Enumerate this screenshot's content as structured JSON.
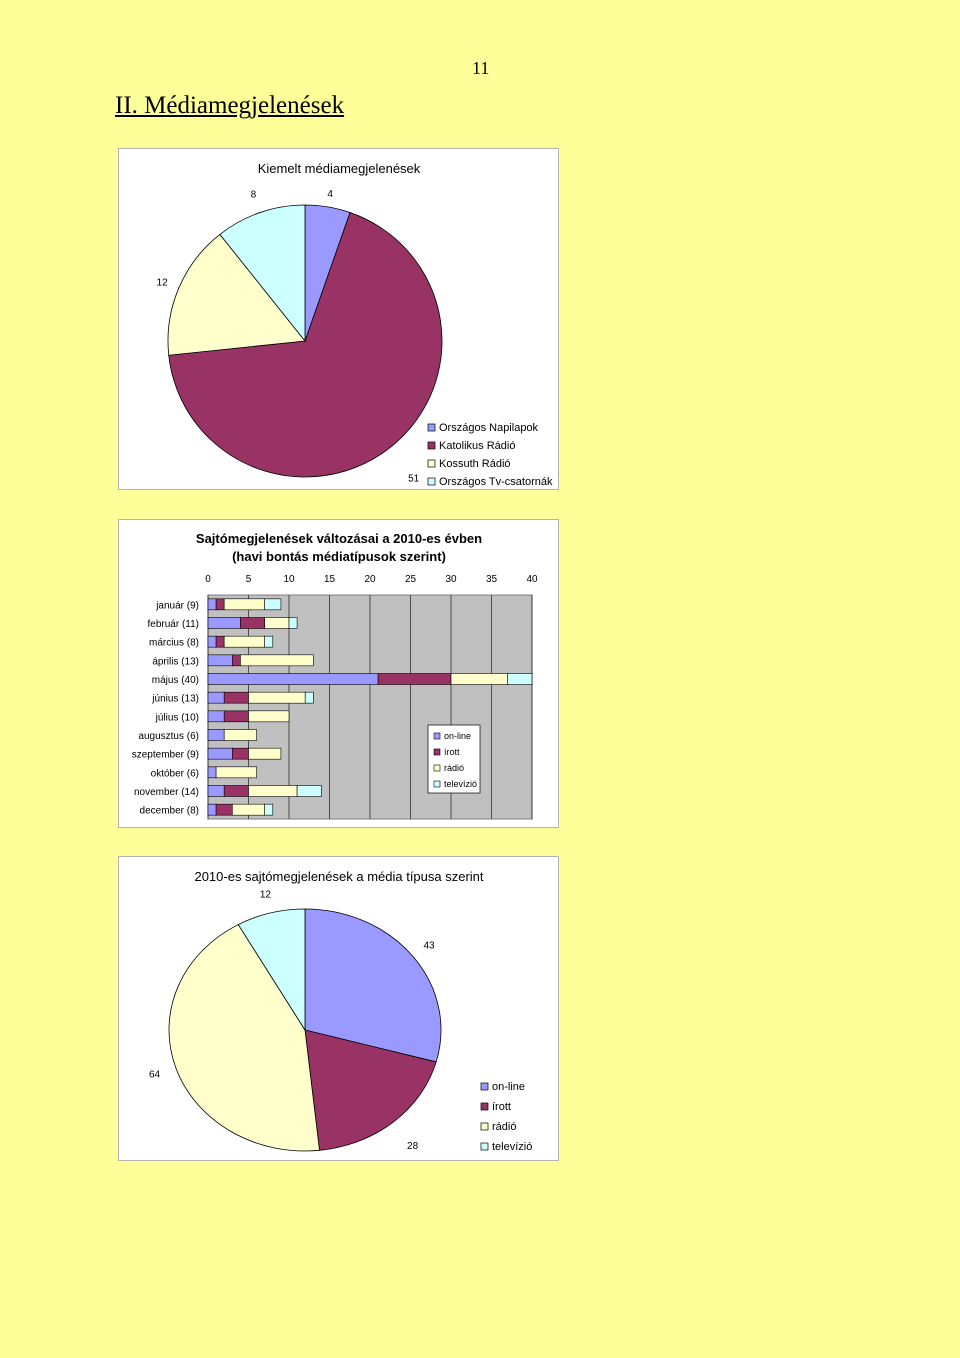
{
  "page": {
    "number": "11",
    "section_title": "II. Médiamegjelenések"
  },
  "colors": {
    "blue": "#9999ff",
    "maroon": "#993366",
    "cream": "#ffffcc",
    "cyan": "#ccffff",
    "plot_bg": "#c0c0c0"
  },
  "chart_data": [
    {
      "type": "pie",
      "title": "Kiemelt médiamegjelenések",
      "labels": [
        "Országos Napilapok",
        "Katolikus Rádió",
        "Kossuth Rádió",
        "Országos Tv-csatornák"
      ],
      "values": [
        4,
        51,
        12,
        8
      ],
      "data_labels": [
        "4",
        "51",
        "12",
        "8"
      ],
      "legend": {
        "placement": "bottom-right",
        "entries": [
          "Országos Napilapok",
          "Katolikus Rádió",
          "Kossuth Rádió",
          "Országos Tv-csatornák"
        ]
      }
    },
    {
      "type": "bar",
      "orientation": "horizontal",
      "stacked": true,
      "title": "Sajtómegjelenések változásai a 2010-es évben",
      "subtitle": "(havi bontás médiatípusok szerint)",
      "categories": [
        "január (9)",
        "február (11)",
        "március (8)",
        "április (13)",
        "május (40)",
        "június (13)",
        "július (10)",
        "augusztus (6)",
        "szeptember (9)",
        "október (6)",
        "november (14)",
        "december (8)"
      ],
      "series": [
        {
          "name": "on-line",
          "values": [
            1,
            4,
            1,
            3,
            21,
            2,
            2,
            2,
            3,
            1,
            2,
            1
          ]
        },
        {
          "name": "írott",
          "values": [
            1,
            3,
            1,
            1,
            9,
            3,
            3,
            0,
            2,
            0,
            3,
            2
          ]
        },
        {
          "name": "rádió",
          "values": [
            5,
            3,
            5,
            9,
            7,
            7,
            5,
            4,
            4,
            5,
            6,
            4
          ]
        },
        {
          "name": "televízió",
          "values": [
            2,
            1,
            1,
            0,
            3,
            1,
            0,
            0,
            0,
            0,
            3,
            1
          ]
        }
      ],
      "xlim": [
        0,
        40
      ],
      "x_ticks": [
        "0",
        "5",
        "10",
        "15",
        "20",
        "25",
        "30",
        "35",
        "40"
      ],
      "grid": true,
      "legend": {
        "placement": "right",
        "entries": [
          "on-line",
          "írott",
          "rádió",
          "televízió"
        ]
      }
    },
    {
      "type": "pie",
      "title": "2010-es sajtómegjelenések a média típusa szerint",
      "labels": [
        "on-line",
        "írott",
        "rádió",
        "televízió"
      ],
      "values": [
        43,
        28,
        64,
        12
      ],
      "data_labels": [
        "43",
        "28",
        "64",
        "12"
      ],
      "legend": {
        "placement": "bottom-right",
        "entries": [
          "on-line",
          "írott",
          "rádió",
          "televízió"
        ]
      }
    }
  ]
}
